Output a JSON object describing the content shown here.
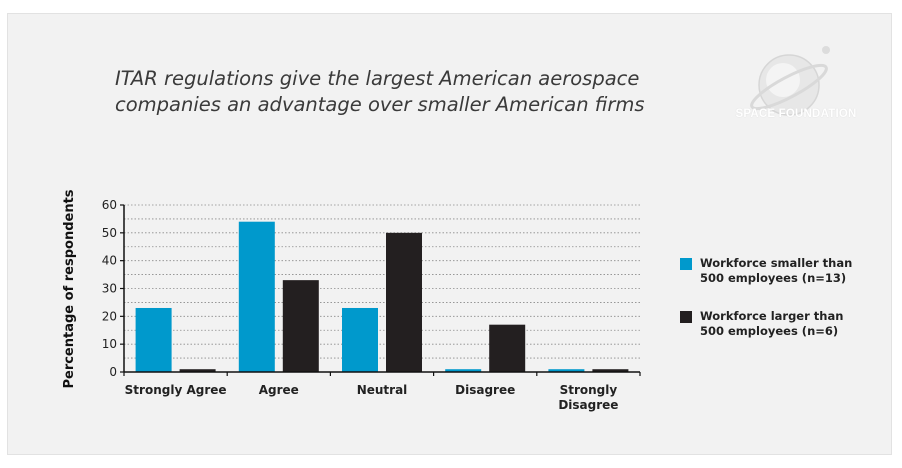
{
  "title": "ITAR regulations give the largest American aerospace companies an advantage over smaller American firms",
  "logo": {
    "text": "SPACE FOUNDATION",
    "icon": "space-foundation-globe-icon"
  },
  "colors": {
    "series_small": "#0099cc",
    "series_large": "#231f20",
    "panel": "#f2f2f2",
    "grid": "#8a8a8a"
  },
  "chart_data": {
    "type": "bar",
    "title": "ITAR regulations give the largest American aerospace companies an advantage over smaller American firms",
    "xlabel": "",
    "ylabel": "Percentage of respondents",
    "ylim": [
      0,
      60
    ],
    "yticks": [
      "0",
      "10",
      "20",
      "30",
      "40",
      "50",
      "60"
    ],
    "grid": true,
    "legend_position": "right",
    "categories": [
      "Strongly Agree",
      "Agree",
      "Neutral",
      "Disagree",
      "Strongly Disagree"
    ],
    "category_lines": [
      [
        "Strongly Agree"
      ],
      [
        "Agree"
      ],
      [
        "Neutral"
      ],
      [
        "Disagree"
      ],
      [
        "Strongly",
        "Disagree"
      ]
    ],
    "series": [
      {
        "name": "Workforce smaller than 500 employees (n=13)",
        "legend_lines": [
          "Workforce smaller than",
          "500 employees (n=13)"
        ],
        "values": [
          23,
          54,
          23,
          1,
          1
        ]
      },
      {
        "name": "Workforce larger than 500 employees (n=6)",
        "legend_lines": [
          "Workforce larger than",
          "500 employees (n=6)"
        ],
        "values": [
          1,
          33,
          50,
          17,
          1
        ]
      }
    ]
  }
}
